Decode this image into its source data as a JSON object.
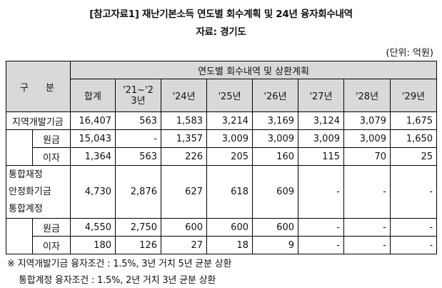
{
  "title_line1": "[참고자료1] 재난기본소득 연도별 회수계획 및 24년 융자회수내역",
  "title_line2": "자료: 경기도",
  "unit": "(단위: 억원)",
  "table": {
    "row_header": "구 분",
    "group_header": "연도별 회수내역 및 상환계획",
    "columns": [
      "합계",
      "'21~'23년",
      "'24년",
      "'25년",
      "'26년",
      "'27년",
      "'28년",
      "'29년"
    ],
    "rows": [
      {
        "label": "지역개발기금",
        "values": [
          "16,407",
          "563",
          "1,583",
          "3,214",
          "3,169",
          "3,124",
          "3,079",
          "1,675"
        ]
      },
      {
        "label": "원금",
        "values": [
          "15,043",
          "-",
          "1,357",
          "3,009",
          "3,009",
          "3,009",
          "3,009",
          "1,650"
        ]
      },
      {
        "label": "이자",
        "values": [
          "1,364",
          "563",
          "226",
          "205",
          "160",
          "115",
          "70",
          "25"
        ]
      },
      {
        "label": "통합재정안정화기금 통합계정",
        "label_lines": [
          "통합재정",
          "안정화기금",
          "통합계정"
        ],
        "values": [
          "4,730",
          "2,876",
          "627",
          "618",
          "609",
          "-",
          "-",
          "-"
        ]
      },
      {
        "label": "원금",
        "values": [
          "4,550",
          "2,750",
          "600",
          "600",
          "600",
          "-",
          "-",
          "-"
        ]
      },
      {
        "label": "이자",
        "values": [
          "180",
          "126",
          "27",
          "18",
          "9",
          "-",
          "-",
          "-"
        ]
      }
    ]
  },
  "footnotes": [
    "※ 지역개발기금 융자조건 : 1.5%, 3년 거치 5년 균분 상환",
    "통합계정 융자조건 : 1.5%, 2년 거치 3년 균분 상환"
  ]
}
